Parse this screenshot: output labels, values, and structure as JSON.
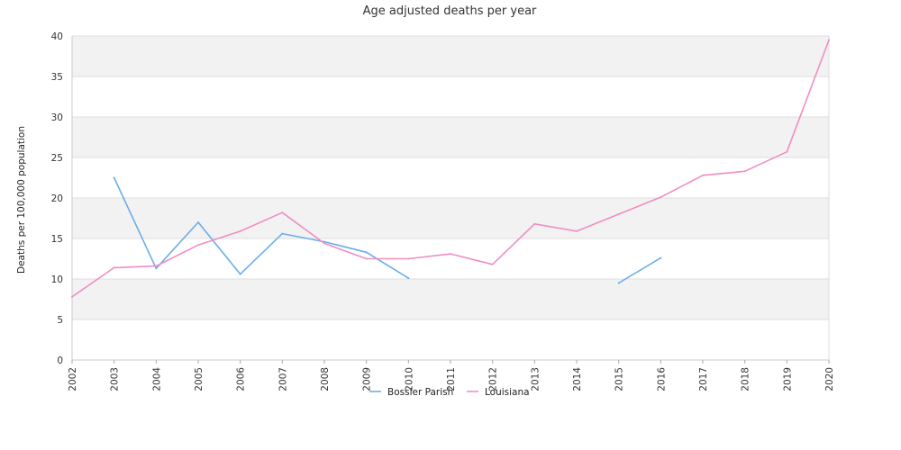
{
  "chart_data": {
    "type": "line",
    "title": "Age adjusted deaths per year",
    "xlabel": "",
    "ylabel": "Deaths per 100,000 population",
    "x": [
      "2002",
      "2003",
      "2004",
      "2005",
      "2006",
      "2007",
      "2008",
      "2009",
      "2010",
      "2011",
      "2012",
      "2013",
      "2014",
      "2015",
      "2016",
      "2017",
      "2018",
      "2019",
      "2020"
    ],
    "ylim": [
      0,
      40
    ],
    "yticks": [
      0,
      5,
      10,
      15,
      20,
      25,
      30,
      35,
      40
    ],
    "grid": true,
    "legend_position": "bottom-center",
    "series": [
      {
        "name": "Bossier Parish",
        "color": "#6aaee8",
        "values": [
          null,
          22.5,
          11.3,
          17.0,
          10.6,
          15.6,
          14.6,
          13.3,
          10.1,
          null,
          null,
          null,
          null,
          9.5,
          12.6,
          null,
          null,
          null,
          null
        ]
      },
      {
        "name": "Louisiana",
        "color": "#f08dc4",
        "values": [
          7.8,
          11.4,
          11.6,
          14.2,
          15.9,
          18.2,
          14.4,
          12.5,
          12.5,
          13.1,
          11.8,
          16.8,
          15.9,
          18.0,
          20.1,
          22.8,
          23.3,
          25.7,
          39.5
        ]
      }
    ]
  }
}
